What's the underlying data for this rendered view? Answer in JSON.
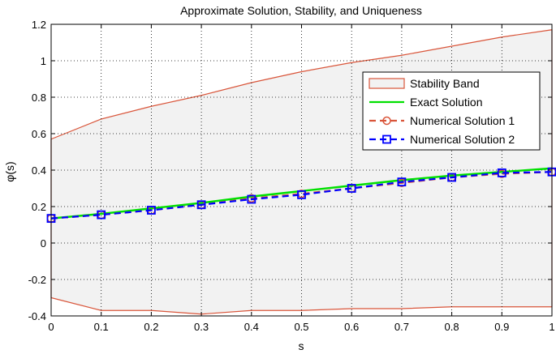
{
  "chart_data": {
    "type": "line",
    "title": "Approximate Solution, Stability, and Uniqueness",
    "xlabel": "s",
    "ylabel": "φ(s)",
    "xlim": [
      0,
      1
    ],
    "ylim": [
      -0.4,
      1.2
    ],
    "xticks": [
      "0",
      "0.1",
      "0.2",
      "0.3",
      "0.4",
      "0.5",
      "0.6",
      "0.7",
      "0.8",
      "0.9",
      "1"
    ],
    "yticks": [
      "-0.4",
      "-0.2",
      "0",
      "0.2",
      "0.4",
      "0.6",
      "0.8",
      "1",
      "1.2"
    ],
    "grid": true,
    "legend_position": "top-right",
    "x": [
      0,
      0.1,
      0.2,
      0.3,
      0.4,
      0.5,
      0.6,
      0.7,
      0.8,
      0.9,
      1.0
    ],
    "band": {
      "name": "Stability Band",
      "color": "#d9553a",
      "fill": "#f2f2f2",
      "upper": [
        0.57,
        0.68,
        0.75,
        0.81,
        0.88,
        0.94,
        0.99,
        1.03,
        1.08,
        1.13,
        1.17
      ],
      "lower": [
        -0.3,
        -0.37,
        -0.37,
        -0.39,
        -0.37,
        -0.37,
        -0.36,
        -0.36,
        -0.35,
        -0.35,
        -0.35
      ]
    },
    "series": [
      {
        "name": "Exact Solution",
        "color": "#00e000",
        "values": [
          0.135,
          0.16,
          0.19,
          0.22,
          0.255,
          0.285,
          0.315,
          0.345,
          0.37,
          0.39,
          0.41
        ]
      },
      {
        "name": "Numerical Solution 1",
        "color": "#d9553a",
        "marker": "circle",
        "values": [
          0.135,
          0.155,
          0.18,
          0.21,
          0.245,
          0.27,
          0.3,
          0.33,
          0.36,
          0.38,
          0.39
        ]
      },
      {
        "name": "Numerical Solution 2",
        "color": "#0000ff",
        "marker": "square",
        "values": [
          0.135,
          0.155,
          0.18,
          0.21,
          0.24,
          0.265,
          0.3,
          0.335,
          0.36,
          0.385,
          0.39
        ]
      }
    ]
  }
}
